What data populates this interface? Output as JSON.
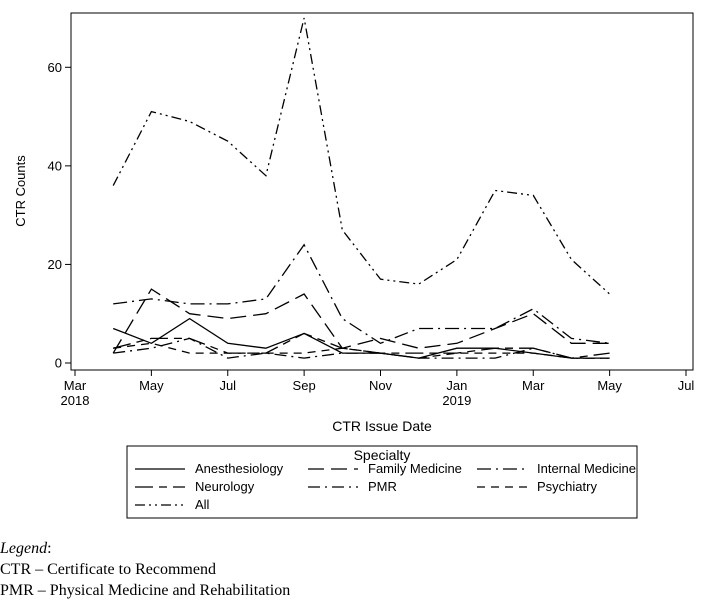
{
  "chart_data": {
    "type": "line",
    "xlabel": "CTR Issue Date",
    "ylabel": "CTR Counts",
    "x_axis": {
      "range": [
        "2018-03",
        "2019-07"
      ],
      "ticks": [
        "2018-03",
        "2018-05",
        "2018-07",
        "2018-09",
        "2018-11",
        "2019-01",
        "2019-03",
        "2019-05",
        "2019-07"
      ],
      "tick_labels": [
        "Mar",
        "May",
        "Jul",
        "Sep",
        "Nov",
        "Jan",
        "Mar",
        "May",
        "Jul"
      ],
      "year_labels": [
        {
          "at": "2018-03",
          "label": "2018"
        },
        {
          "at": "2019-01",
          "label": "2019"
        }
      ]
    },
    "y_axis": {
      "range": [
        0,
        70
      ],
      "ticks": [
        0,
        20,
        40,
        60
      ]
    },
    "grid": false,
    "legend": {
      "title": "Specialty",
      "position": "bottom"
    },
    "x": [
      "2018-04",
      "2018-05",
      "2018-06",
      "2018-07",
      "2018-08",
      "2018-09",
      "2018-10",
      "2018-11",
      "2018-12",
      "2019-01",
      "2019-02",
      "2019-03",
      "2019-04",
      "2019-05"
    ],
    "series": [
      {
        "name": "Anesthesiology",
        "dash": "solid",
        "values": [
          7,
          4,
          9,
          4,
          3,
          6,
          2,
          2,
          1,
          3,
          3,
          2,
          1,
          1
        ]
      },
      {
        "name": "Family Medicine",
        "dash": "longdash",
        "values": [
          2,
          15,
          10,
          9,
          10,
          14,
          3,
          5,
          3,
          4,
          7,
          10,
          4,
          4
        ]
      },
      {
        "name": "Internal Medicine",
        "dash": "dashdot",
        "values": [
          12,
          13,
          12,
          12,
          13,
          24,
          9,
          4,
          7,
          7,
          7,
          11,
          5,
          4
        ]
      },
      {
        "name": "Neurology",
        "dash": "longshort",
        "values": [
          3,
          5,
          5,
          2,
          2,
          6,
          3,
          2,
          2,
          2,
          3,
          3,
          1,
          2
        ]
      },
      {
        "name": "PMR",
        "dash": "longdot",
        "values": [
          2,
          3,
          5,
          1,
          2,
          1,
          2,
          2,
          1,
          1,
          1,
          3,
          1,
          1
        ]
      },
      {
        "name": "Psychiatry",
        "dash": "medium",
        "values": [
          3,
          4,
          2,
          2,
          2,
          2,
          3,
          2,
          1,
          2,
          2,
          2,
          1,
          1
        ]
      },
      {
        "name": "All",
        "dash": "dashdotdot",
        "values": [
          36,
          51,
          49,
          45,
          38,
          70,
          27,
          17,
          16,
          21,
          35,
          34,
          21,
          14
        ]
      }
    ]
  },
  "notes": {
    "legend_heading": "Legend",
    "lines": [
      "CTR – Certificate to Recommend",
      "PMR – Physical Medicine and Rehabilitation"
    ]
  }
}
